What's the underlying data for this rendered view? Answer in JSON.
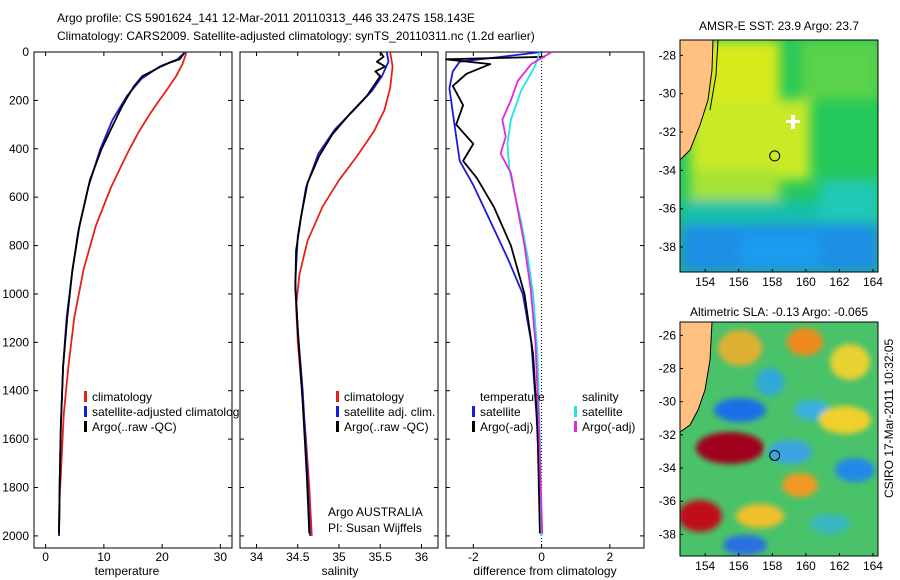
{
  "header": {
    "line1": "Argo profile: CS 5901624_141 12-Mar-2011 20110313_446 33.247S 158.143E",
    "line2": "Climatology: CARS2009. Satellite-adjusted climatology: synTS_20110311.nc (1.2d earlier)"
  },
  "side_stamp": "CSIRO 17-Mar-2011 10:32:05",
  "colors": {
    "climatology": "#e8201a",
    "satellite": "#1a1adc",
    "argo": "#000000",
    "sal_satellite": "#22e4e4",
    "sal_argo": "#e02ad8"
  },
  "chart_data": [
    {
      "type": "line",
      "name": "temperature-profile",
      "xlabel": "temperature",
      "ylabel": "",
      "xlim": [
        -2,
        32
      ],
      "ylim": [
        2050,
        0
      ],
      "xticks": [
        0,
        10,
        20,
        30
      ],
      "yticks": [
        0,
        200,
        400,
        600,
        800,
        1000,
        1200,
        1400,
        1600,
        1800,
        2000
      ],
      "legend": {
        "placement": "lower-right",
        "entries": [
          "climatology",
          "satellite-adjusted climatology",
          "Argo(..raw -QC)"
        ]
      },
      "series": [
        {
          "name": "climatology",
          "x": [
            24.2,
            23.5,
            22.4,
            21.0,
            19.5,
            17.8,
            16.0,
            14.0,
            11.2,
            8.6,
            6.5,
            4.9,
            3.9,
            3.1,
            2.7,
            2.4,
            2.3
          ],
          "y": [
            0,
            50,
            100,
            150,
            200,
            260,
            330,
            420,
            560,
            720,
            900,
            1100,
            1300,
            1500,
            1700,
            1850,
            2000
          ]
        },
        {
          "name": "satellite-adjusted climatology",
          "x": [
            24.0,
            22.6,
            19.6,
            16.5,
            14.0,
            11.5,
            9.4,
            7.3,
            5.6,
            4.5,
            3.6,
            3.0,
            2.6,
            2.4,
            2.3
          ],
          "y": [
            0,
            30,
            60,
            110,
            180,
            280,
            400,
            560,
            740,
            920,
            1100,
            1300,
            1550,
            1800,
            2000
          ]
        },
        {
          "name": "Argo(..raw -QC)",
          "x": [
            23.8,
            23.0,
            21.2,
            19.8,
            18.2,
            16.6,
            15.2,
            14.2,
            13.0,
            11.6,
            9.6,
            7.6,
            5.8,
            4.6,
            3.7,
            3.0,
            2.6,
            2.4,
            2.3
          ],
          "y": [
            5,
            30,
            45,
            60,
            80,
            100,
            140,
            180,
            230,
            300,
            400,
            530,
            720,
            900,
            1100,
            1300,
            1550,
            1800,
            1990
          ]
        }
      ]
    },
    {
      "type": "line",
      "name": "salinity-profile",
      "xlabel": "salinity",
      "ylabel": "",
      "xlim": [
        33.8,
        36.2
      ],
      "ylim": [
        2050,
        0
      ],
      "xticks": [
        34,
        34.5,
        35,
        35.5,
        36
      ],
      "legend": {
        "placement": "lower-right",
        "entries": [
          "climatology",
          "satellite adj. clim.",
          "Argo(..raw -QC)"
        ]
      },
      "annotations": [
        "Argo AUSTRALIA",
        "PI: Susan Wijffels"
      ],
      "series": [
        {
          "name": "climatology",
          "x": [
            35.62,
            35.65,
            35.62,
            35.55,
            35.42,
            35.22,
            35.0,
            34.8,
            34.62,
            34.52,
            34.48,
            34.5,
            34.55,
            34.6,
            34.64,
            34.67
          ],
          "y": [
            0,
            60,
            150,
            240,
            330,
            430,
            530,
            640,
            780,
            920,
            1050,
            1200,
            1400,
            1600,
            1800,
            2000
          ]
        },
        {
          "name": "satellite adj. clim.",
          "x": [
            35.58,
            35.6,
            35.52,
            35.4,
            35.18,
            34.95,
            34.75,
            34.6,
            34.5,
            34.47,
            34.5,
            34.56,
            34.61,
            34.65
          ],
          "y": [
            0,
            40,
            100,
            160,
            240,
            320,
            420,
            560,
            760,
            950,
            1150,
            1400,
            1700,
            2000
          ]
        },
        {
          "name": "Argo(..raw -QC)",
          "x": [
            35.5,
            35.54,
            35.46,
            35.56,
            35.44,
            35.5,
            35.34,
            35.12,
            34.92,
            34.76,
            34.62,
            34.54,
            34.48,
            34.47,
            34.51,
            34.56,
            34.61,
            34.64
          ],
          "y": [
            0,
            20,
            40,
            60,
            80,
            100,
            180,
            260,
            340,
            430,
            540,
            680,
            820,
            980,
            1200,
            1450,
            1750,
            1990
          ]
        }
      ]
    },
    {
      "type": "line",
      "name": "difference-profile",
      "xlabel": "difference from climatology",
      "ylabel": "",
      "xlim": [
        -2.8,
        3.0
      ],
      "ylim": [
        2050,
        0
      ],
      "xticks": [
        -2,
        0,
        2
      ],
      "legend": {
        "placement": "lower-center",
        "entries": [
          "temperature",
          "satellite",
          "Argo(-adj)",
          "salinity",
          "satellite",
          "Argo(-adj)"
        ]
      },
      "series": [
        {
          "name": "temperature satellite",
          "x": [
            0,
            -2.4,
            -2.6,
            -2.7,
            -2.6,
            -2.5,
            -2.4,
            -2.0,
            -1.5,
            -1.0,
            -0.55,
            -0.3,
            -0.15,
            -0.05,
            0.0
          ],
          "y": [
            0,
            40,
            80,
            150,
            250,
            350,
            450,
            550,
            700,
            850,
            1000,
            1200,
            1500,
            1800,
            2000
          ]
        },
        {
          "name": "temperature Argo(-adj)",
          "x": [
            0.1,
            -2.8,
            -1.5,
            -2.2,
            -2.6,
            -2.3,
            -2.5,
            -2.0,
            -2.3,
            -1.9,
            -1.4,
            -0.9,
            -0.5,
            -0.25,
            -0.12,
            -0.05
          ],
          "y": [
            20,
            30,
            50,
            90,
            140,
            220,
            300,
            380,
            450,
            520,
            640,
            800,
            1000,
            1250,
            1550,
            1990
          ]
        },
        {
          "name": "salinity satellite",
          "x": [
            -0.05,
            -0.2,
            -0.6,
            -0.9,
            -1.0,
            -0.95,
            -0.8,
            -0.6,
            -0.4,
            -0.25,
            -0.12,
            -0.05,
            0.0
          ],
          "y": [
            0,
            60,
            160,
            280,
            380,
            480,
            580,
            700,
            850,
            1000,
            1250,
            1600,
            2000
          ]
        },
        {
          "name": "salinity Argo(-adj)",
          "x": [
            0.3,
            -0.3,
            -0.7,
            -0.9,
            -1.15,
            -1.05,
            -1.2,
            -0.9,
            -0.7,
            -0.5,
            -0.32,
            -0.18,
            -0.08,
            0.02
          ],
          "y": [
            0,
            50,
            120,
            200,
            280,
            350,
            420,
            500,
            650,
            800,
            980,
            1200,
            1550,
            1990
          ]
        }
      ]
    },
    {
      "type": "heatmap",
      "name": "sst-map",
      "title": "AMSR-E SST: 23.9  Argo: 23.7",
      "xlim": [
        152.5,
        164.3
      ],
      "ylim": [
        -39.3,
        -27.2
      ],
      "xticks": [
        154,
        156,
        158,
        160,
        162,
        164
      ],
      "yticks": [
        -28,
        -30,
        -32,
        -34,
        -36,
        -38
      ],
      "argo_position": {
        "lon": 158.143,
        "lat": -33.247
      }
    },
    {
      "type": "heatmap",
      "name": "sla-map",
      "title": "Altimetric SLA: -0.13  Argo: -0.065",
      "xlim": [
        152.5,
        164.3
      ],
      "ylim": [
        -39.3,
        -25.2
      ],
      "xticks": [
        154,
        156,
        158,
        160,
        162,
        164
      ],
      "yticks": [
        -26,
        -28,
        -30,
        -32,
        -34,
        -36,
        -38
      ],
      "argo_position": {
        "lon": 158.143,
        "lat": -33.247
      }
    }
  ]
}
